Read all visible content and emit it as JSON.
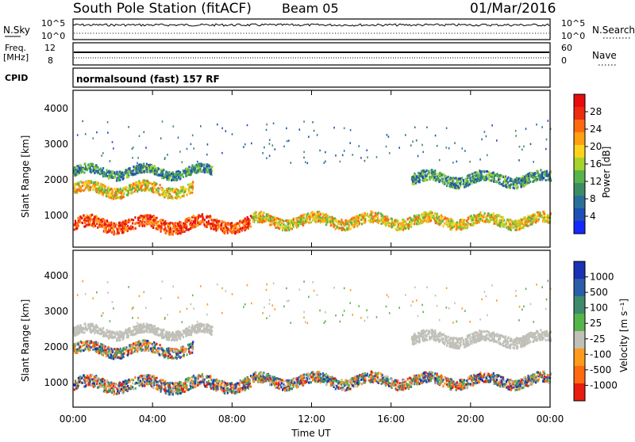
{
  "header": {
    "station": "South Pole Station (fitACF)",
    "beam": "Beam 05",
    "date": "01/Mar/2016"
  },
  "nsky_panel": {
    "left_label": "N.Sky",
    "left_ticks": [
      "10^5",
      "10^0"
    ],
    "right_label": "N.Search",
    "right_ticks": [
      "10^5",
      "10^0"
    ]
  },
  "freq_panel": {
    "left_label_line1": "Freq.",
    "left_label_line2": "[MHz]",
    "left_ticks": [
      "12",
      "8"
    ],
    "right_label": "Nave",
    "right_ticks": [
      "60",
      "0"
    ]
  },
  "cpid_panel": {
    "label": "CPID",
    "text": "normalsound (fast) 157 RF"
  },
  "x_axis": {
    "label": "Time UT",
    "ticks": [
      "00:00",
      "04:00",
      "08:00",
      "12:00",
      "16:00",
      "20:00",
      "00:00"
    ]
  },
  "power_panel": {
    "ylabel": "Slant Range [km]",
    "yticks": [
      "1000",
      "2000",
      "3000",
      "4000"
    ],
    "colorbar_label": "Power [dB]",
    "colorbar_ticks": [
      "4",
      "8",
      "12",
      "16",
      "20",
      "24",
      "28"
    ],
    "colorbar_colors": [
      "#1428ff",
      "#1d4fb5",
      "#2a6f9a",
      "#3c8b65",
      "#56b44a",
      "#a6d22c",
      "#ffd21c",
      "#ff9f12",
      "#ff6a10",
      "#ee2a10",
      "#e80c0c"
    ]
  },
  "velocity_panel": {
    "ylabel": "Slant Range [km]",
    "yticks": [
      "1000",
      "2000",
      "3000",
      "4000"
    ],
    "colorbar_label": "Velocity [m s⁻¹]",
    "colorbar_ticks": [
      "1000",
      "500",
      "100",
      "25",
      "-25",
      "-100",
      "-500",
      "-1000"
    ],
    "colorbar_colors": [
      "#1a32b4",
      "#2a5fa8",
      "#3e8a6a",
      "#56b44a",
      "#c0c0b8",
      "#ff9a1c",
      "#ff6a10",
      "#e81c10"
    ]
  },
  "chart_data": {
    "type": "heatmap",
    "x_range_hours": [
      0,
      24
    ],
    "y_range_km": [
      200,
      4600
    ],
    "power_bands": [
      {
        "center_km": 700,
        "width_km": 350,
        "start_h": 0,
        "end_h": 9,
        "level": "high"
      },
      {
        "center_km": 800,
        "width_km": 300,
        "start_h": 9,
        "end_h": 24,
        "level": "medium"
      },
      {
        "center_km": 1700,
        "width_km": 300,
        "start_h": 0,
        "end_h": 6,
        "level": "medium"
      },
      {
        "center_km": 2200,
        "width_km": 250,
        "start_h": 0,
        "end_h": 7,
        "level": "low"
      },
      {
        "center_km": 2000,
        "width_km": 300,
        "start_h": 17,
        "end_h": 24,
        "level": "low"
      }
    ]
  }
}
